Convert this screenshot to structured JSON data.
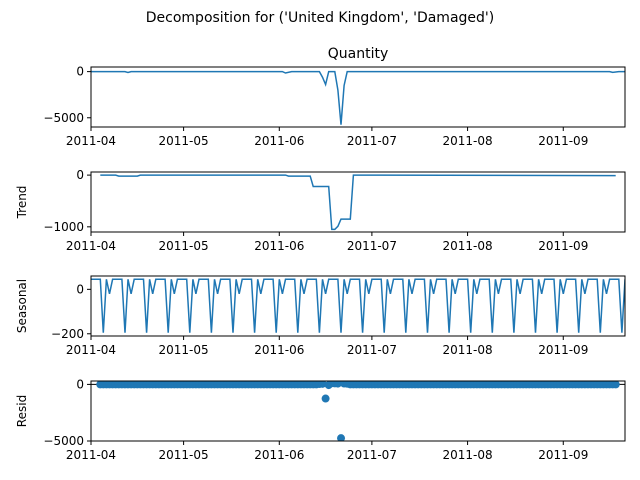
{
  "figure": {
    "suptitle": "Decomposition for ('United Kingdom', 'Damaged')"
  },
  "chart_data": [
    {
      "type": "line",
      "title": "Quantity",
      "ylabel": "",
      "xlabel": "",
      "x_range": [
        "2011-04-01",
        "2011-09-21"
      ],
      "x_ticks": [
        "2011-04",
        "2011-05",
        "2011-06",
        "2011-07",
        "2011-08",
        "2011-09"
      ],
      "ylim": [
        -6000,
        500
      ],
      "y_ticks": [
        0,
        -5000
      ],
      "color": "#1f77b4",
      "series": [
        {
          "x": [
            "2011-04-01",
            "2011-04-12",
            "2011-04-13",
            "2011-04-14",
            "2011-06-02",
            "2011-06-03",
            "2011-06-05",
            "2011-06-14",
            "2011-06-15",
            "2011-06-16",
            "2011-06-17",
            "2011-06-19",
            "2011-06-20",
            "2011-06-21",
            "2011-06-22",
            "2011-06-23",
            "2011-09-16",
            "2011-09-17",
            "2011-09-19",
            "2011-09-21"
          ],
          "y": [
            0,
            0,
            -100,
            0,
            0,
            -150,
            0,
            0,
            -600,
            -1400,
            0,
            0,
            -2000,
            -5750,
            -1500,
            0,
            0,
            -80,
            0,
            0
          ]
        }
      ]
    },
    {
      "type": "line",
      "title": "",
      "ylabel": "Trend",
      "xlabel": "",
      "x_range": [
        "2011-04-01",
        "2011-09-21"
      ],
      "x_ticks": [
        "2011-04",
        "2011-05",
        "2011-06",
        "2011-07",
        "2011-08",
        "2011-09"
      ],
      "ylim": [
        -1100,
        60
      ],
      "y_ticks": [
        0,
        -1000
      ],
      "color": "#1f77b4",
      "series": [
        {
          "x": [
            "2011-04-04",
            "2011-04-09",
            "2011-04-10",
            "2011-04-16",
            "2011-04-17",
            "2011-06-03",
            "2011-06-04",
            "2011-06-11",
            "2011-06-12",
            "2011-06-17",
            "2011-06-18",
            "2011-06-19",
            "2011-06-20",
            "2011-06-21",
            "2011-06-24",
            "2011-06-25",
            "2011-09-18"
          ],
          "y": [
            0,
            0,
            -20,
            -20,
            0,
            0,
            -20,
            -20,
            -220,
            -220,
            -1050,
            -1050,
            -990,
            -850,
            -850,
            0,
            -10
          ]
        }
      ]
    },
    {
      "type": "line",
      "title": "",
      "ylabel": "Seasonal",
      "xlabel": "",
      "x_range": [
        "2011-04-01",
        "2011-09-21"
      ],
      "x_ticks": [
        "2011-04",
        "2011-05",
        "2011-06",
        "2011-07",
        "2011-08",
        "2011-09"
      ],
      "ylim": [
        -210,
        60
      ],
      "y_ticks": [
        0,
        -200
      ],
      "color": "#1f77b4",
      "period_days": 7,
      "weekly_pattern": [
        45,
        45,
        45,
        45,
        -195,
        45,
        -20
      ],
      "series": []
    },
    {
      "type": "scatter",
      "title": "",
      "ylabel": "Resid",
      "xlabel": "",
      "x_range": [
        "2011-04-01",
        "2011-09-21"
      ],
      "x_ticks": [
        "2011-04",
        "2011-05",
        "2011-06",
        "2011-07",
        "2011-08",
        "2011-09"
      ],
      "ylim": [
        -5000,
        300
      ],
      "y_ticks": [
        0,
        -5000
      ],
      "baseline": 0,
      "color": "#1f77b4",
      "series": [
        {
          "x": [
            "2011-06-14",
            "2011-06-15",
            "2011-06-16",
            "2011-06-17",
            "2011-06-18",
            "2011-06-19",
            "2011-06-20",
            "2011-06-21",
            "2011-06-22",
            "2011-06-23"
          ],
          "y": [
            30,
            50,
            -1250,
            -60,
            100,
            90,
            70,
            -4750,
            80,
            60
          ]
        }
      ],
      "default_resid": 0
    }
  ]
}
